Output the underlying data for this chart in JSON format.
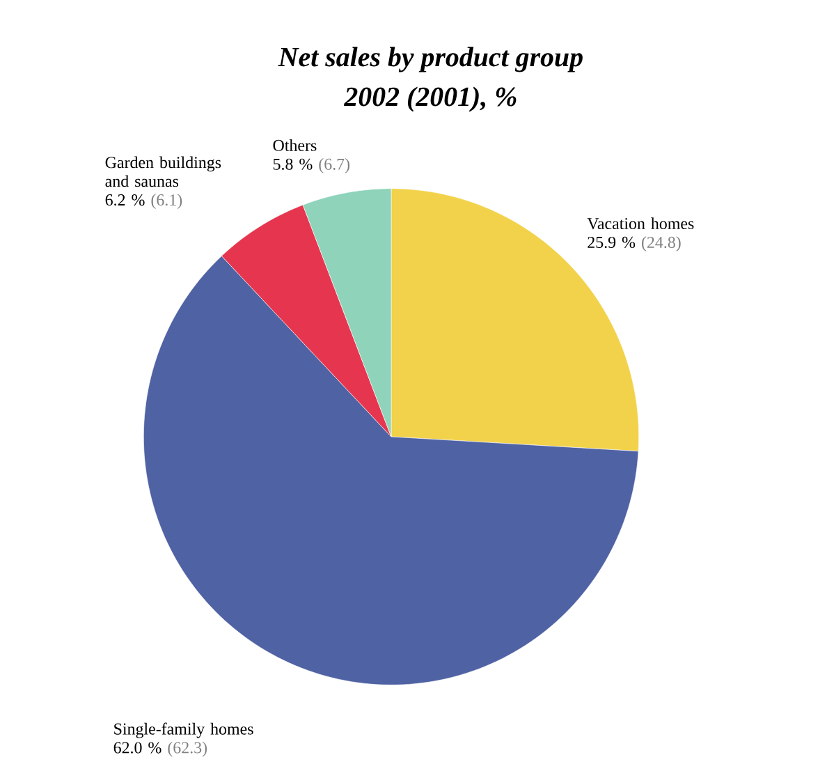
{
  "chart_data": {
    "type": "pie",
    "title": "Net sales by product group",
    "subtitle": "2002 (2001), %",
    "categories": [
      "Vacation homes",
      "Single-family homes",
      "Garden buildings and saunas",
      "Others"
    ],
    "values": [
      25.9,
      62.0,
      6.2,
      5.8
    ],
    "colors": [
      "#f2d24a",
      "#4f62a3",
      "#e6364f",
      "#8fd3bb"
    ],
    "value_labels": [
      "25.9 %",
      "62.0 %",
      "6.2 %",
      "5.8 %"
    ],
    "annotations": [
      "(24.8)",
      "(62.3)",
      "(6.1)",
      "(6.7)"
    ]
  }
}
